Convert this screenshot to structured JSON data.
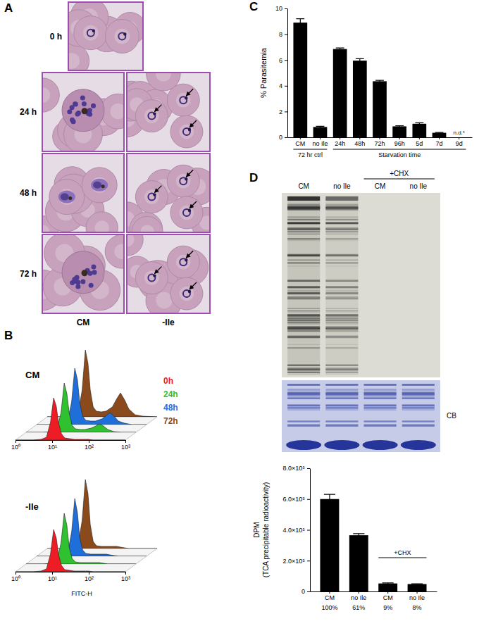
{
  "panel_labels": [
    "A",
    "B",
    "C",
    "D"
  ],
  "micrographs": {
    "times": [
      "0 h",
      "24 h",
      "48 h",
      "72 h"
    ],
    "conditions": [
      "CM",
      "-Ile"
    ]
  },
  "gel": {
    "lanes": [
      "CM",
      "no Ile",
      "CM",
      "no Ile"
    ],
    "groups": [
      {
        "label": "+CHX",
        "from": 2,
        "to": 3
      }
    ],
    "stain": "CB"
  },
  "chart_data": [
    {
      "type": "bar",
      "ylabel": "% Parasitemia",
      "categories": [
        "CM",
        "no Ile",
        "24h",
        "48h",
        "72h",
        "96h",
        "5d",
        "7d",
        "9d"
      ],
      "values": [
        8.9,
        0.8,
        6.85,
        5.95,
        4.35,
        0.85,
        1.05,
        0.35,
        null
      ],
      "errors": [
        0.3,
        0.05,
        0.08,
        0.15,
        0.07,
        0.05,
        0.08,
        0.03,
        null
      ],
      "color": "#000000",
      "ylim": [
        0,
        10
      ],
      "yticks": [
        0,
        2,
        4,
        6,
        8,
        10
      ],
      "groups": [
        {
          "label": "72 hr ctrl",
          "from": 0,
          "to": 1
        },
        {
          "label": "Starvation time",
          "from": 2,
          "to": 8
        }
      ],
      "annotations": [
        {
          "text": "n.d.*",
          "x": "9d"
        }
      ]
    },
    {
      "type": "bar",
      "ylabel": [
        "DPM",
        "(TCA precipitable radioactivity)"
      ],
      "categories": [
        "CM",
        "no Ile",
        "CM",
        "no Ile"
      ],
      "category_sublabels": [
        "100%",
        "61%",
        "9%",
        "8%"
      ],
      "values": [
        600000,
        365000,
        52000,
        48000
      ],
      "errors": [
        30000,
        10000,
        3000,
        2000
      ],
      "color": "#000000",
      "ylim": [
        0,
        800000
      ],
      "yticks": [
        0,
        {
          "value": 200000,
          "label": "2.0×10⁵"
        },
        {
          "value": 400000,
          "label": "4.0×10⁵"
        },
        {
          "value": 600000,
          "label": "6.0×10⁵"
        },
        {
          "value": 800000,
          "label": "8.0×10⁵"
        }
      ],
      "groups": [
        {
          "label": "+CHX",
          "from": 2,
          "to": 3
        }
      ]
    },
    {
      "type": "area",
      "title": "CM",
      "log": "x",
      "tick_labels": "x",
      "legend": "upper right",
      "x": [
        1,
        3,
        5,
        7,
        9,
        11,
        13,
        15,
        18,
        22,
        30,
        40,
        60,
        80,
        100,
        130,
        170,
        250,
        400,
        1000
      ],
      "xlim": [
        1,
        1000
      ],
      "xticks": [
        {
          "value": 1,
          "label": "10⁰"
        },
        {
          "value": 10,
          "label": "10¹"
        },
        {
          "value": 100,
          "label": "10²"
        },
        {
          "value": 1000,
          "label": "10³"
        }
      ],
      "ylim": [
        0,
        100
      ],
      "series": [
        {
          "name": "0h",
          "color": "#ee1c25",
          "values": [
            0,
            0,
            1,
            4,
            25,
            60,
            48,
            24,
            9,
            3,
            2,
            1,
            1,
            1,
            1,
            0,
            0,
            0,
            0,
            0
          ]
        },
        {
          "name": "24h",
          "color": "#2fc12f",
          "values": [
            0,
            0,
            1,
            4,
            28,
            70,
            55,
            28,
            10,
            5,
            4,
            4,
            6,
            9,
            12,
            9,
            4,
            1,
            0,
            0
          ]
        },
        {
          "name": "48h",
          "color": "#1e6fd9",
          "values": [
            0,
            0,
            1,
            4,
            32,
            80,
            64,
            32,
            12,
            6,
            5,
            5,
            8,
            13,
            17,
            12,
            5,
            2,
            0,
            0
          ]
        },
        {
          "name": "72h",
          "color": "#8b4a1c",
          "values": [
            0,
            0,
            1,
            5,
            38,
            95,
            76,
            38,
            14,
            8,
            7,
            8,
            14,
            26,
            34,
            24,
            11,
            3,
            1,
            0
          ]
        }
      ]
    },
    {
      "type": "area",
      "title": "-Ile",
      "log": "x",
      "tick_labels": "x",
      "xlabel": "FITC-H",
      "x": [
        1,
        3,
        5,
        7,
        9,
        11,
        13,
        15,
        18,
        22,
        30,
        40,
        60,
        80,
        100,
        130,
        170,
        250,
        400,
        1000
      ],
      "xlim": [
        1,
        1000
      ],
      "xticks": [
        {
          "value": 1,
          "label": "10⁰"
        },
        {
          "value": 10,
          "label": "10¹"
        },
        {
          "value": 100,
          "label": "10²"
        },
        {
          "value": 1000,
          "label": "10³"
        }
      ],
      "ylim": [
        0,
        100
      ],
      "series": [
        {
          "color": "#ee1c25",
          "values": [
            0,
            0,
            1,
            4,
            25,
            60,
            48,
            24,
            9,
            3,
            2,
            1,
            1,
            1,
            1,
            0,
            0,
            0,
            0,
            0
          ]
        },
        {
          "color": "#2fc12f",
          "values": [
            0,
            0,
            1,
            4,
            30,
            72,
            55,
            24,
            8,
            3,
            2,
            2,
            2,
            2,
            2,
            1,
            0,
            0,
            0,
            0
          ]
        },
        {
          "color": "#1e6fd9",
          "values": [
            0,
            0,
            1,
            4,
            34,
            82,
            62,
            27,
            9,
            4,
            3,
            3,
            3,
            3,
            2,
            1,
            0,
            0,
            0,
            0
          ]
        },
        {
          "color": "#8b4a1c",
          "values": [
            0,
            0,
            1,
            5,
            40,
            98,
            78,
            34,
            10,
            4,
            3,
            3,
            3,
            3,
            2,
            1,
            0,
            0,
            0,
            0
          ]
        }
      ]
    }
  ]
}
